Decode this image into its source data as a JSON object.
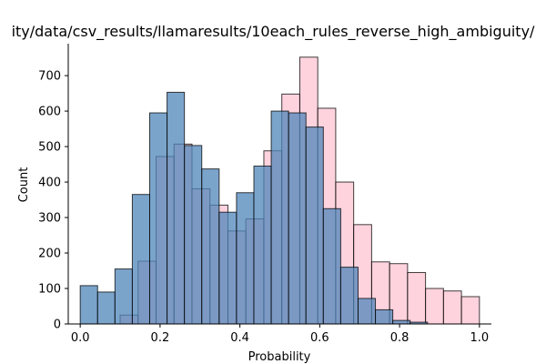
{
  "chart_data": {
    "type": "bar",
    "title": "ity/data/csv_results/llamaresults/10each_rules_reverse_high_ambiguity/",
    "xlabel": "Probability",
    "ylabel": "Count",
    "xlim": [
      -0.03,
      1.03
    ],
    "ylim": [
      0,
      790
    ],
    "xticks": [
      "0.0",
      "0.2",
      "0.4",
      "0.6",
      "0.8",
      "1.0"
    ],
    "yticks": [
      "0",
      "100",
      "200",
      "300",
      "400",
      "500",
      "600",
      "700"
    ],
    "grid": false,
    "series": [
      {
        "color": "#ffb6c8",
        "bins": [
          {
            "x0": 0.1,
            "x1": 0.145,
            "count": 25
          },
          {
            "x0": 0.145,
            "x1": 0.19,
            "count": 177
          },
          {
            "x0": 0.19,
            "x1": 0.235,
            "count": 472
          },
          {
            "x0": 0.235,
            "x1": 0.28,
            "count": 507
          },
          {
            "x0": 0.28,
            "x1": 0.325,
            "count": 381
          },
          {
            "x0": 0.325,
            "x1": 0.37,
            "count": 335
          },
          {
            "x0": 0.37,
            "x1": 0.415,
            "count": 262
          },
          {
            "x0": 0.415,
            "x1": 0.46,
            "count": 296
          },
          {
            "x0": 0.46,
            "x1": 0.505,
            "count": 488
          },
          {
            "x0": 0.505,
            "x1": 0.55,
            "count": 648
          },
          {
            "x0": 0.55,
            "x1": 0.595,
            "count": 752
          },
          {
            "x0": 0.595,
            "x1": 0.64,
            "count": 608
          },
          {
            "x0": 0.64,
            "x1": 0.685,
            "count": 400
          },
          {
            "x0": 0.685,
            "x1": 0.73,
            "count": 280
          },
          {
            "x0": 0.73,
            "x1": 0.775,
            "count": 175
          },
          {
            "x0": 0.775,
            "x1": 0.82,
            "count": 170
          },
          {
            "x0": 0.82,
            "x1": 0.865,
            "count": 145
          },
          {
            "x0": 0.865,
            "x1": 0.91,
            "count": 100
          },
          {
            "x0": 0.91,
            "x1": 0.955,
            "count": 93
          },
          {
            "x0": 0.955,
            "x1": 1.0,
            "count": 77
          }
        ]
      },
      {
        "color": "#4f86ba",
        "bins": [
          {
            "x0": 0.0,
            "x1": 0.0435,
            "count": 108
          },
          {
            "x0": 0.0435,
            "x1": 0.087,
            "count": 90
          },
          {
            "x0": 0.087,
            "x1": 0.1305,
            "count": 155
          },
          {
            "x0": 0.1305,
            "x1": 0.174,
            "count": 365
          },
          {
            "x0": 0.174,
            "x1": 0.2175,
            "count": 595
          },
          {
            "x0": 0.2175,
            "x1": 0.261,
            "count": 653
          },
          {
            "x0": 0.261,
            "x1": 0.3045,
            "count": 503
          },
          {
            "x0": 0.3045,
            "x1": 0.348,
            "count": 437
          },
          {
            "x0": 0.348,
            "x1": 0.3915,
            "count": 315
          },
          {
            "x0": 0.3915,
            "x1": 0.435,
            "count": 370
          },
          {
            "x0": 0.435,
            "x1": 0.4785,
            "count": 445
          },
          {
            "x0": 0.4785,
            "x1": 0.522,
            "count": 600
          },
          {
            "x0": 0.522,
            "x1": 0.5655,
            "count": 595
          },
          {
            "x0": 0.5655,
            "x1": 0.609,
            "count": 555
          },
          {
            "x0": 0.609,
            "x1": 0.6525,
            "count": 325
          },
          {
            "x0": 0.6525,
            "x1": 0.696,
            "count": 160
          },
          {
            "x0": 0.696,
            "x1": 0.7395,
            "count": 72
          },
          {
            "x0": 0.7395,
            "x1": 0.783,
            "count": 40
          },
          {
            "x0": 0.783,
            "x1": 0.8265,
            "count": 10
          },
          {
            "x0": 0.8265,
            "x1": 0.87,
            "count": 5
          }
        ]
      }
    ]
  }
}
